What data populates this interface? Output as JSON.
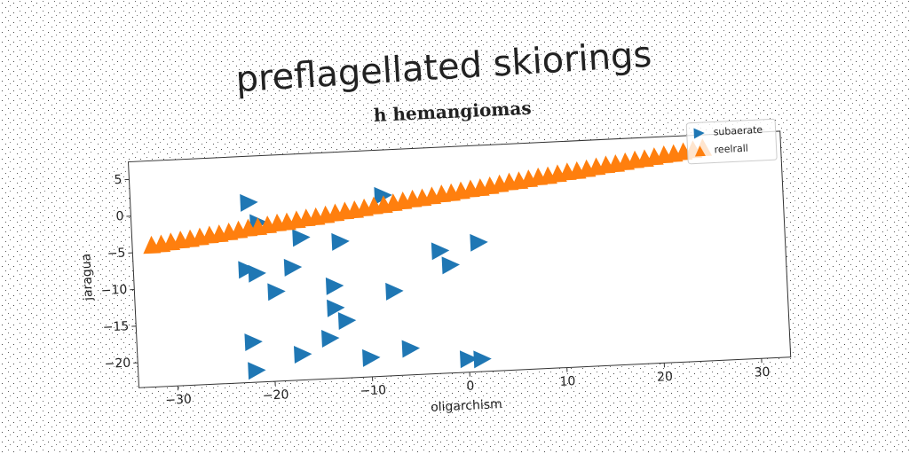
{
  "page_title": "preflagellated skiorings",
  "chart_data": {
    "type": "scatter",
    "title": "h hemangiomas",
    "xlabel": "oligarchism",
    "ylabel": "jaragua",
    "xlim": [
      -34,
      33
    ],
    "ylim": [
      -23.4,
      7.4
    ],
    "xticks": [
      {
        "value": -30,
        "label": "−30"
      },
      {
        "value": -20,
        "label": "−20"
      },
      {
        "value": -10,
        "label": "−10"
      },
      0,
      10,
      20,
      30
    ],
    "yticks": [
      {
        "value": -20,
        "label": "−20"
      },
      {
        "value": -15,
        "label": "−15"
      },
      {
        "value": -10,
        "label": "−10"
      },
      {
        "value": -5,
        "label": "−5"
      },
      0,
      5
    ],
    "legend": "upper right",
    "series": [
      {
        "name": "subaerate",
        "color": "#1f77b4",
        "marker": "triangle-right",
        "x": [
          -21.8,
          -8,
          -20.9,
          -16.6,
          -12.6,
          1.6,
          -2.4,
          -1.4,
          -22.3,
          -21.3,
          -17.6,
          -19.4,
          -13.4,
          -7.3,
          -13.4,
          -12.3,
          -14.1,
          -22,
          -5.9,
          -17,
          -10,
          0,
          1.4,
          -21.8
        ],
        "values": [
          1.1,
          1.2,
          -1.7,
          -4.0,
          -4.8,
          -5.8,
          -6.7,
          -8.7,
          -8.0,
          -8.6,
          -8.0,
          -11.2,
          -10.8,
          -11.9,
          -13.8,
          -15.6,
          -17.9,
          -17.9,
          -19.8,
          -19.9,
          -20.8,
          -21.6,
          -21.7,
          -21.8
        ]
      },
      {
        "name": "reelrall",
        "color": "#ff7f0e",
        "marker": "triangle-up",
        "x": [
          -32,
          -31,
          -30,
          -29,
          -28,
          -27,
          -26,
          -25,
          -24,
          -23,
          -22,
          -21,
          -20,
          -19,
          -18,
          -17,
          -16,
          -15,
          -14,
          -13,
          -12,
          -11,
          -10,
          -9,
          -8,
          -7,
          -6,
          -5,
          -4,
          -3,
          -2,
          -1,
          0,
          1,
          2,
          3,
          4,
          5,
          6,
          7,
          8,
          9,
          10,
          11,
          12,
          13,
          14,
          15,
          16,
          17,
          18,
          19,
          20,
          21,
          22,
          23,
          24,
          25
        ],
        "values": [
          -4.0,
          -3.9,
          -3.7,
          -3.5,
          -3.4,
          -3.2,
          -3.0,
          -2.9,
          -2.7,
          -2.5,
          -2.3,
          -2.2,
          -2.0,
          -1.8,
          -1.7,
          -1.5,
          -1.3,
          -1.2,
          -1.0,
          -0.8,
          -0.6,
          -0.5,
          -0.3,
          -0.1,
          0.0,
          0.2,
          0.4,
          0.6,
          0.7,
          0.9,
          1.1,
          1.2,
          1.4,
          1.6,
          1.7,
          1.9,
          2.1,
          2.3,
          2.4,
          2.6,
          2.8,
          2.9,
          3.1,
          3.3,
          3.4,
          3.6,
          3.8,
          4.0,
          4.1,
          4.3,
          4.5,
          4.6,
          4.8,
          5.0,
          5.1,
          5.3,
          5.5,
          5.7
        ]
      }
    ]
  }
}
